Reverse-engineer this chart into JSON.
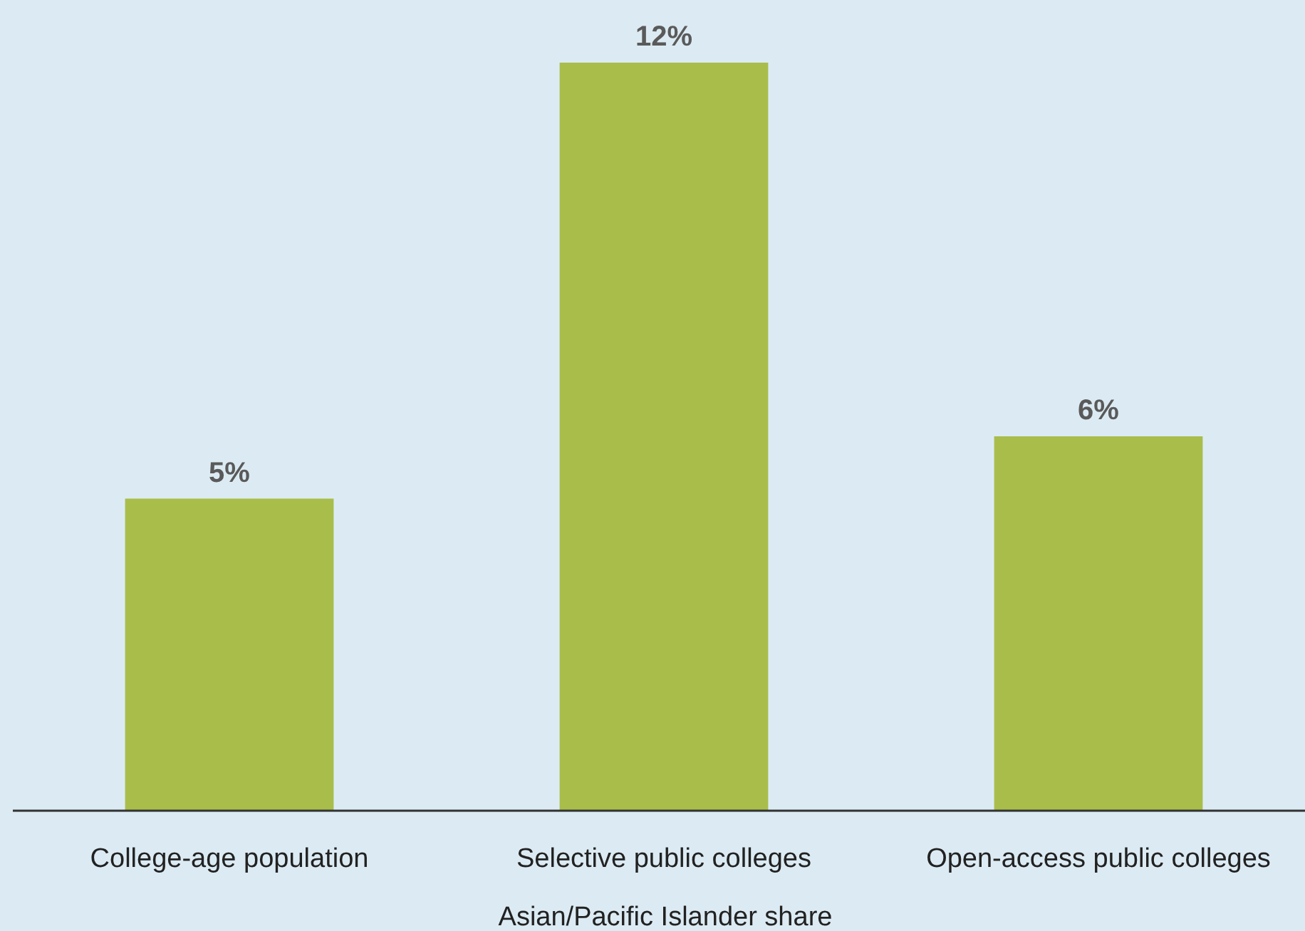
{
  "chart_data": {
    "type": "bar",
    "xlabel": "Asian/Pacific Islander share",
    "categories": [
      "College-age population",
      "Selective public colleges",
      "Open-access public colleges"
    ],
    "values": [
      5,
      12,
      6
    ],
    "color": "#a9bd4b",
    "value_labels": [
      "5%",
      "12%",
      "6%"
    ]
  }
}
